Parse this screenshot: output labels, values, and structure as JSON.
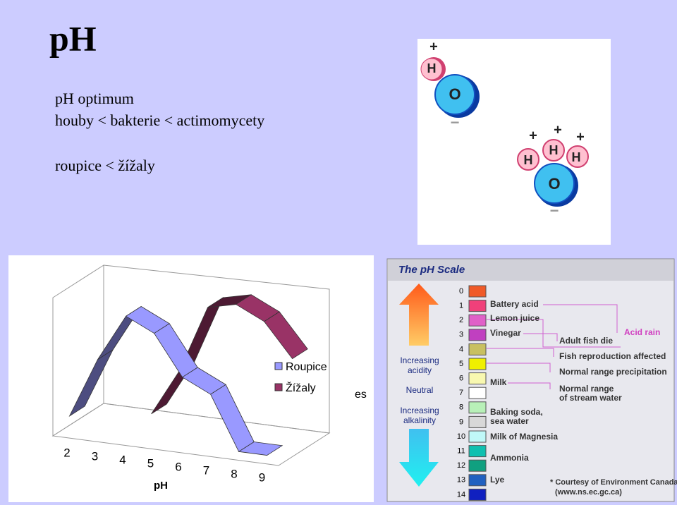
{
  "slide": {
    "title": "pH",
    "bullets": [
      "pH optimum",
      "houby < bakterie < actimomycety",
      "roupice < žížaly"
    ]
  },
  "chart_data": {
    "type": "line",
    "categories": [
      "2",
      "3",
      "4",
      "5",
      "6",
      "7",
      "8",
      "9"
    ],
    "x_label": "pH",
    "series": [
      {
        "name": "Roupice",
        "color": "#9999ff",
        "values": [
          15,
          60,
          95,
          85,
          55,
          45,
          5,
          5
        ]
      },
      {
        "name": "Žížaly",
        "color": "#993366",
        "values": [
          null,
          null,
          10,
          45,
          95,
          100,
          90,
          65
        ]
      }
    ],
    "legend_fragment": "es"
  },
  "molecule_image": {
    "labels": [
      "+",
      "H",
      "O",
      "−",
      "+",
      "+",
      "+",
      "H",
      "H",
      "H",
      "O",
      "−"
    ]
  },
  "ph_scale_image": {
    "title": "The pH Scale",
    "levels": [
      {
        "label": "0",
        "color": "#f05a28"
      },
      {
        "label": "1",
        "color": "#f0407a"
      },
      {
        "label": "2",
        "color": "#e060c8"
      },
      {
        "label": "3",
        "color": "#c040c0"
      },
      {
        "label": "4",
        "color": "#c8c060"
      },
      {
        "label": "5",
        "color": "#f0f000"
      },
      {
        "label": "6",
        "color": "#f8f8b0"
      },
      {
        "label": "7",
        "color": "#ffffff"
      },
      {
        "label": "8",
        "color": "#b8f0b8"
      },
      {
        "label": "9",
        "color": "#d8d8d8"
      },
      {
        "label": "10",
        "color": "#c0f8f8"
      },
      {
        "label": "11",
        "color": "#10c0b0"
      },
      {
        "label": "12",
        "color": "#10a080"
      },
      {
        "label": "13",
        "color": "#2060c0"
      },
      {
        "label": "14",
        "color": "#1020c0"
      }
    ],
    "substances": [
      "Battery acid",
      "Lemon juice",
      "Vinegar",
      "Milk",
      "Baking soda,",
      "sea water",
      "Milk of Magnesia",
      "Ammonia",
      "Lye"
    ],
    "effects": [
      "Adult fish die",
      "Acid rain",
      "Fish reproduction affected",
      "Normal range precipitation",
      "Normal range",
      "of stream water"
    ],
    "arrow_labels": [
      "Increasing",
      "acidity",
      "Neutral",
      "Increasing",
      "alkalinity"
    ],
    "credit": [
      "* Courtesy of Environment Canada",
      "(www.ns.ec.gc.ca)"
    ]
  }
}
